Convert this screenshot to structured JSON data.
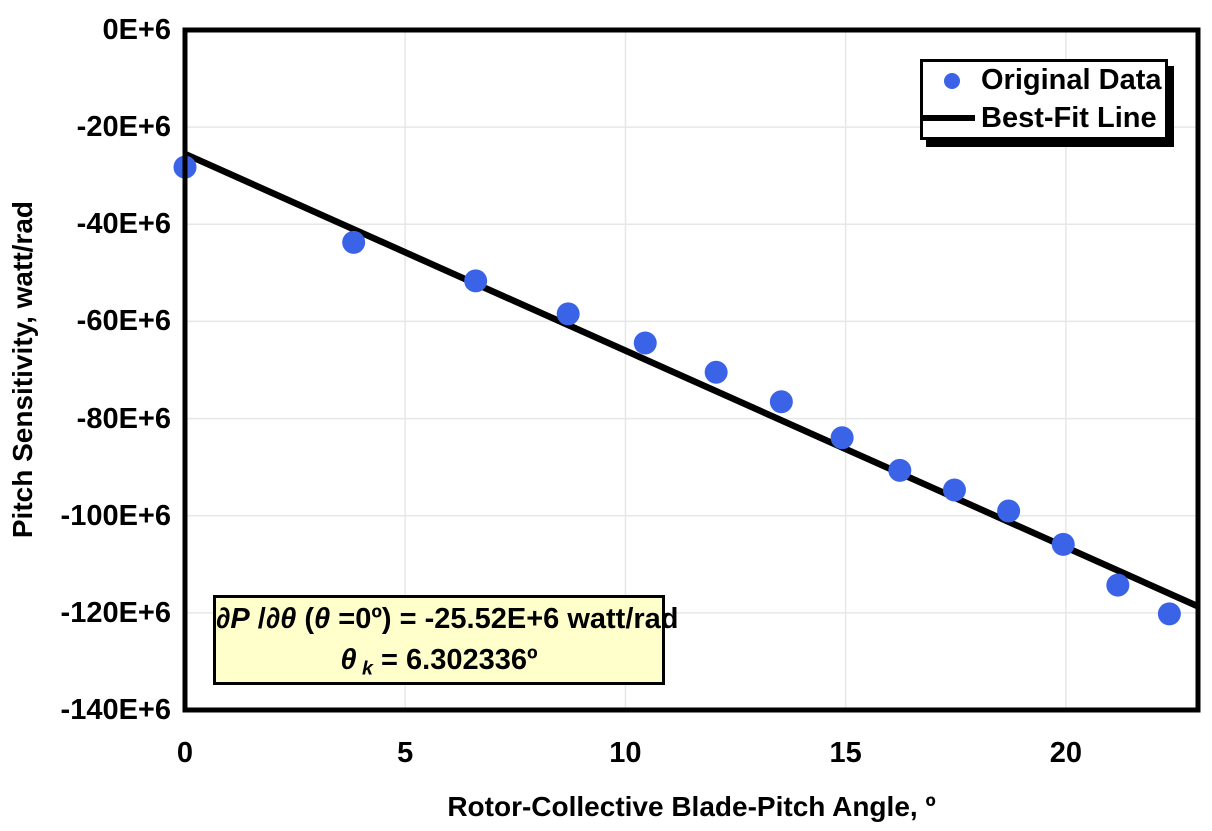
{
  "figure": {
    "background": "#FFFFFF",
    "frame_color": "#000000",
    "grid_color": "#E7E7E7"
  },
  "axes": {
    "x_title": "Rotor-Collective Blade-Pitch Angle, º",
    "y_title": "Pitch Sensitivity, watt/rad",
    "x_tick_labels": [
      "0",
      "5",
      "10",
      "15",
      "20"
    ],
    "y_tick_labels": [
      "0E+6",
      "-20E+6",
      "-40E+6",
      "-60E+6",
      "-80E+6",
      "-100E+6",
      "-120E+6",
      "-140E+6"
    ]
  },
  "legend": {
    "items": [
      {
        "label": "Original Data",
        "marker": "dot",
        "color": "#3A63E8"
      },
      {
        "label": "Best-Fit Line",
        "marker": "line",
        "color": "#000000"
      }
    ]
  },
  "annotation": {
    "background": "#FFFFCC",
    "border_color": "#000000",
    "line1": [
      {
        "t": "∂P",
        "i": true
      },
      {
        "t": " /",
        "i": false
      },
      {
        "t": "∂θ",
        "i": true
      },
      {
        "t": " (",
        "i": false
      },
      {
        "t": "θ",
        "i": true
      },
      {
        "t": " =0º) = -25.52E+6 watt/rad",
        "i": false
      }
    ],
    "line2": [
      {
        "t": "θ",
        "i": true
      },
      {
        "t": " k",
        "i": true,
        "sub": true
      },
      {
        "t": " = 6.302336º",
        "i": false
      }
    ]
  },
  "chart_data": {
    "type": "scatter",
    "title": "",
    "xlabel": "Rotor-Collective Blade-Pitch Angle, º",
    "ylabel": "Pitch Sensitivity, watt/rad",
    "x_unit": "degrees",
    "y_unit": "E+6 watt/rad",
    "xlim": [
      0,
      23
    ],
    "ylim": [
      -140,
      0
    ],
    "x_ticks": [
      0,
      5,
      10,
      15,
      20
    ],
    "y_ticks": [
      0,
      -20,
      -40,
      -60,
      -80,
      -100,
      -120,
      -140
    ],
    "grid": true,
    "legend_position": "top-right",
    "series": [
      {
        "name": "Original Data",
        "type": "scatter",
        "color": "#3A63E8",
        "marker_radius_px": 11.5,
        "points": [
          [
            0.0,
            -28.24
          ],
          [
            3.83,
            -43.73
          ],
          [
            6.6,
            -51.66
          ],
          [
            8.7,
            -58.44
          ],
          [
            10.45,
            -64.44
          ],
          [
            12.06,
            -70.46
          ],
          [
            13.54,
            -76.53
          ],
          [
            14.92,
            -83.94
          ],
          [
            16.23,
            -90.67
          ],
          [
            17.47,
            -94.71
          ],
          [
            18.7,
            -99.04
          ],
          [
            19.94,
            -105.9
          ],
          [
            21.18,
            -114.3
          ],
          [
            22.35,
            -120.2
          ]
        ]
      },
      {
        "name": "Best-Fit Line",
        "type": "line",
        "color": "#000000",
        "stroke_width_px": 6.5,
        "intercept_E6": -25.52,
        "theta_k_deg": 6.302336,
        "points": [
          [
            0,
            -25.52
          ],
          [
            23,
            -118.66
          ]
        ]
      }
    ]
  }
}
